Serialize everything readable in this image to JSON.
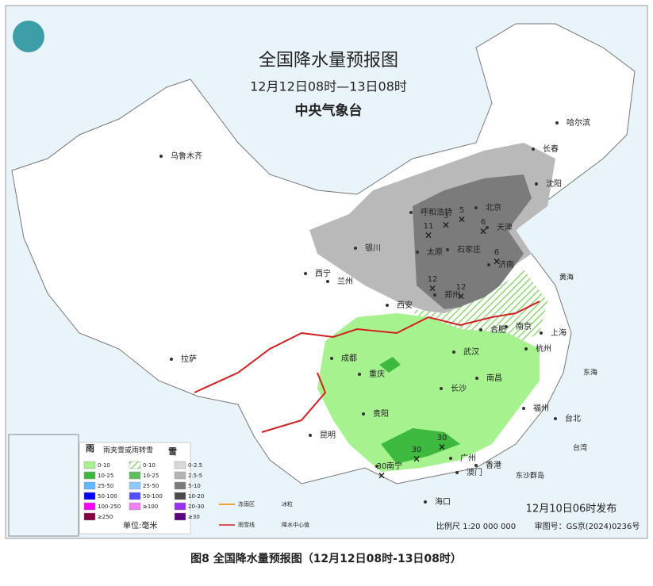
{
  "header": {
    "title": "全国降水量预报图",
    "period": "12月12日08时—13日08时",
    "issuer": "中央气象台"
  },
  "cities": [
    "乌鲁木齐",
    "哈尔滨",
    "长春",
    "沈阳",
    "北京",
    "天津",
    "呼和浩特",
    "银川",
    "太原",
    "石家庄",
    "济南",
    "西宁",
    "兰州",
    "郑州",
    "西安",
    "合肥",
    "南京",
    "上海",
    "杭州",
    "拉萨",
    "成都",
    "武汉",
    "重庆",
    "长沙",
    "南昌",
    "贵阳",
    "福州",
    "台北",
    "昆明",
    "南宁",
    "广州",
    "澳门",
    "香港",
    "海口"
  ],
  "seas": [
    "黄海",
    "东海",
    "台湾",
    "东沙群岛"
  ],
  "precip_centers": [
    11,
    3,
    5,
    6,
    6,
    12,
    12,
    30,
    30,
    30
  ],
  "legend": {
    "rain": {
      "title": "雨",
      "items": [
        "0-10",
        "10-25",
        "25-50",
        "50-100",
        "100-250",
        "≥250"
      ]
    },
    "mixed": {
      "title": "雨夹雪或雨转雪",
      "items": [
        "0-10",
        "10-25",
        "25-50",
        "50-100",
        "≥100"
      ]
    },
    "snow": {
      "title": "雪",
      "items": [
        "0-2.5",
        "2.5-5",
        "5-10",
        "10-20",
        "20-30",
        "≥30"
      ]
    },
    "unit": "单位:毫米",
    "lines": [
      "冻雨区",
      "冰粒",
      "雨雪线",
      "降水中心值"
    ]
  },
  "footer": {
    "issued": "12月10日06时发布",
    "scale": "比例尺 1:20 000 000",
    "review": "审图号：GS京(2024)0236号"
  },
  "caption": "图8 全国降水量预报图（12月12日08时-13日08时）"
}
